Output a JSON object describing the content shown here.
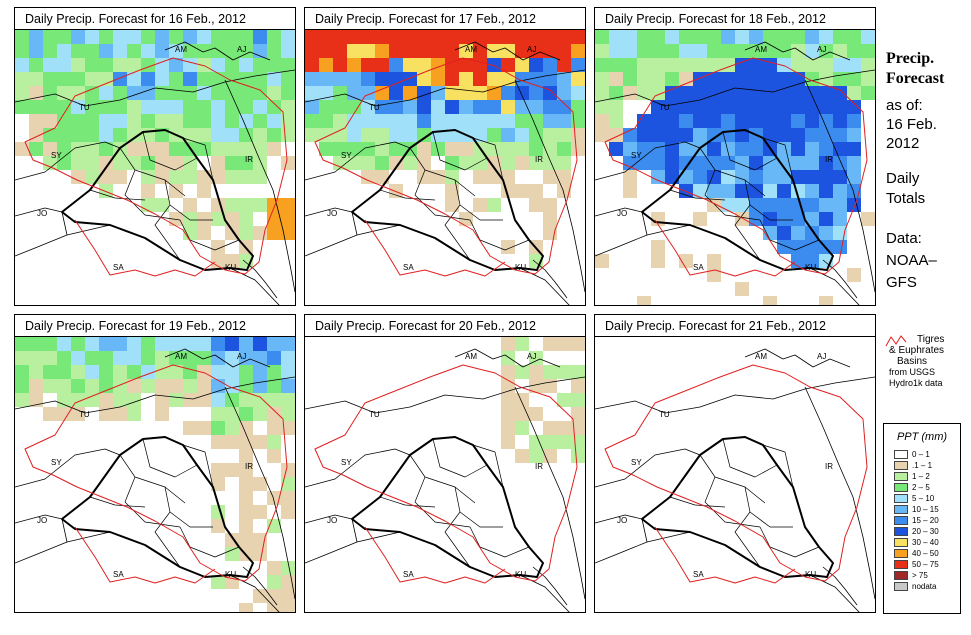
{
  "panels": [
    {
      "title": "Daily Precip. Forecast for  16 Feb., 2012",
      "date": "16 Feb., 2012",
      "intensity": 3
    },
    {
      "title": "Daily Precip. Forecast for  17 Feb., 2012",
      "date": "17 Feb., 2012",
      "intensity": 4
    },
    {
      "title": "Daily Precip. Forecast for  18 Feb., 2012",
      "date": "18 Feb., 2012",
      "intensity": 3
    },
    {
      "title": "Daily Precip. Forecast for  19 Feb., 2012",
      "date": "19 Feb., 2012",
      "intensity": 2
    },
    {
      "title": "Daily Precip. Forecast for  20 Feb., 2012",
      "date": "20 Feb., 2012",
      "intensity": 1
    },
    {
      "title": "Daily Precip. Forecast for  21 Feb., 2012",
      "date": "21 Feb., 2012",
      "intensity": 0
    }
  ],
  "country_labels": [
    "AM",
    "AJ",
    "TU",
    "SY",
    "IR",
    "JO",
    "SA",
    "KU"
  ],
  "sidebar": {
    "heading1": "Precip.",
    "heading2": "Forecast",
    "asof1": "as of:",
    "asof2": "16 Feb.",
    "asof3": "2012",
    "totals1": "Daily",
    "totals2": "Totals",
    "data1": "Data:",
    "data2": "NOAA–",
    "data3": "GFS"
  },
  "basin_note": {
    "line1": "Tigres",
    "line2": "& Euphrates",
    "line3": "Basins",
    "line4": "from USGS",
    "line5": "Hydro1k data",
    "line_color": "#e02020"
  },
  "legend": {
    "title": "PPT (mm)",
    "items": [
      {
        "label": "0 – 1",
        "color": "#ffffff"
      },
      {
        "label": ".1 – 1",
        "color": "#e8d3b0"
      },
      {
        "label": "1 – 2",
        "color": "#b8f0a0"
      },
      {
        "label": "2 – 5",
        "color": "#78e878"
      },
      {
        "label": "5 – 10",
        "color": "#a0e0f8"
      },
      {
        "label": "10 – 15",
        "color": "#68b8f8"
      },
      {
        "label": "15 – 20",
        "color": "#3c8cf0"
      },
      {
        "label": "20 – 30",
        "color": "#1c54e0"
      },
      {
        "label": "30 – 40",
        "color": "#f8e060"
      },
      {
        "label": "40 – 50",
        "color": "#f8a020"
      },
      {
        "label": "50 – 75",
        "color": "#e83018"
      },
      {
        "label": "> 75",
        "color": "#a02828"
      },
      {
        "label": "nodata",
        "color": "#c8c8c8"
      }
    ]
  }
}
